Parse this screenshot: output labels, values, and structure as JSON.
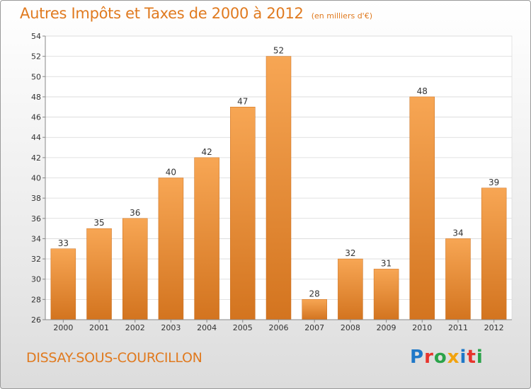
{
  "header": {
    "title": "Autres Impôts et Taxes de 2000 à 2012",
    "subtitle": "(en milliers d'€)"
  },
  "footer": {
    "commune": "DISSAY-SOUS-COURCILLON",
    "logo_letters": [
      {
        "char": "P",
        "color": "#1f78c8"
      },
      {
        "char": "r",
        "color": "#e8342c"
      },
      {
        "char": "o",
        "color": "#2aa34a"
      },
      {
        "char": "x",
        "color": "#f2a30f"
      },
      {
        "char": "i",
        "color": "#1f78c8"
      },
      {
        "char": "t",
        "color": "#e8342c"
      },
      {
        "char": "i",
        "color": "#2aa34a"
      }
    ]
  },
  "chart_data": {
    "type": "bar",
    "categories": [
      "2000",
      "2001",
      "2002",
      "2003",
      "2004",
      "2005",
      "2006",
      "2007",
      "2008",
      "2009",
      "2010",
      "2011",
      "2012"
    ],
    "values": [
      33,
      35,
      36,
      40,
      42,
      47,
      52,
      28,
      32,
      31,
      48,
      34,
      39
    ],
    "ylim": [
      26,
      54
    ],
    "yticks": [
      26,
      28,
      30,
      32,
      34,
      36,
      38,
      40,
      42,
      44,
      46,
      48,
      50,
      52,
      54
    ],
    "grid": true,
    "legend": "none",
    "bar_color_top": "#f7a654",
    "bar_color_bottom": "#d3741f",
    "value_labels": true
  }
}
